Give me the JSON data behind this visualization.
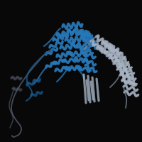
{
  "background_color": "#080808",
  "blue": "#2878b8",
  "blue2": "#1a5f99",
  "gray": "#a8b4c4",
  "gray2": "#7a8898",
  "dark_gray": "#505868",
  "figsize": [
    2.0,
    2.0
  ],
  "dpi": 100
}
